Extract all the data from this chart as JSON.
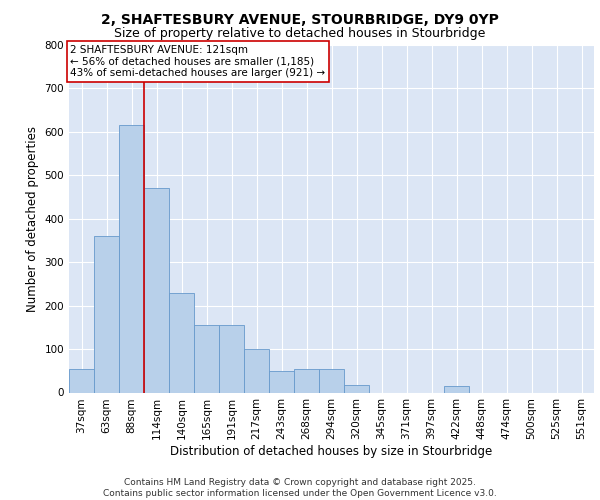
{
  "title_line1": "2, SHAFTESBURY AVENUE, STOURBRIDGE, DY9 0YP",
  "title_line2": "Size of property relative to detached houses in Stourbridge",
  "xlabel": "Distribution of detached houses by size in Stourbridge",
  "ylabel": "Number of detached properties",
  "categories": [
    "37sqm",
    "63sqm",
    "88sqm",
    "114sqm",
    "140sqm",
    "165sqm",
    "191sqm",
    "217sqm",
    "243sqm",
    "268sqm",
    "294sqm",
    "320sqm",
    "345sqm",
    "371sqm",
    "397sqm",
    "422sqm",
    "448sqm",
    "474sqm",
    "500sqm",
    "525sqm",
    "551sqm"
  ],
  "values": [
    55,
    360,
    615,
    470,
    230,
    155,
    155,
    100,
    50,
    55,
    55,
    17,
    0,
    0,
    0,
    15,
    0,
    0,
    0,
    0,
    0
  ],
  "bar_color": "#b8d0ea",
  "bar_edge_color": "#6699cc",
  "background_color": "#dce6f5",
  "grid_color": "#ffffff",
  "annotation_text_line1": "2 SHAFTESBURY AVENUE: 121sqm",
  "annotation_text_line2": "← 56% of detached houses are smaller (1,185)",
  "annotation_text_line3": "43% of semi-detached houses are larger (921) →",
  "vline_x": 3.0,
  "vline_color": "#cc0000",
  "ylim": [
    0,
    800
  ],
  "yticks": [
    0,
    100,
    200,
    300,
    400,
    500,
    600,
    700,
    800
  ],
  "footer_line1": "Contains HM Land Registry data © Crown copyright and database right 2025.",
  "footer_line2": "Contains public sector information licensed under the Open Government Licence v3.0.",
  "title_fontsize": 10,
  "subtitle_fontsize": 9,
  "axis_label_fontsize": 8.5,
  "tick_fontsize": 7.5,
  "annotation_fontsize": 7.5,
  "footer_fontsize": 6.5
}
